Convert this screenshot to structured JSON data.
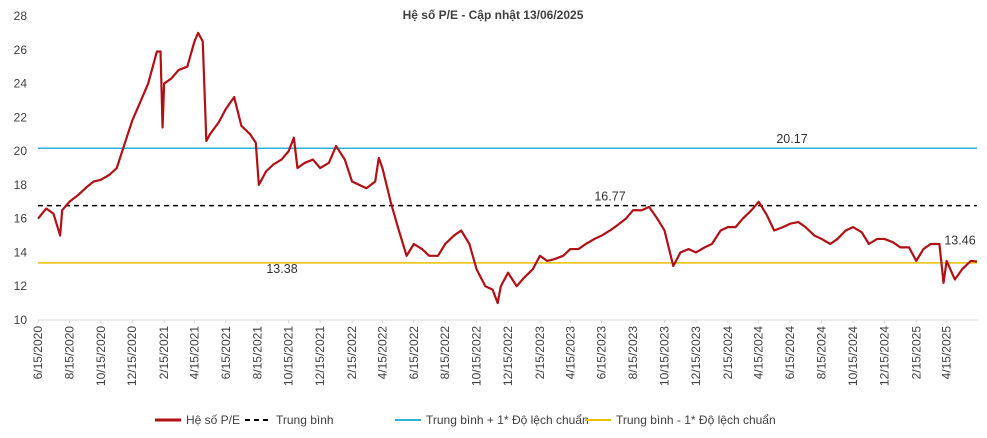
{
  "chart_data": {
    "type": "line",
    "title": "Hệ số P/E - Cập nhật 13/06/2025",
    "x": [
      "6/15/2020",
      "7/1/2020",
      "7/15/2020",
      "7/28/2020",
      "8/1/2020",
      "8/15/2020",
      "9/1/2020",
      "9/15/2020",
      "10/1/2020",
      "10/15/2020",
      "11/1/2020",
      "11/15/2020",
      "12/1/2020",
      "12/15/2020",
      "1/1/2021",
      "1/15/2021",
      "2/1/2021",
      "2/8/2021",
      "2/12/2021",
      "2/15/2021",
      "3/1/2021",
      "3/15/2021",
      "4/1/2021",
      "4/15/2021",
      "4/22/2021",
      "5/1/2021",
      "5/8/2021",
      "5/15/2021",
      "6/1/2021",
      "6/15/2021",
      "7/1/2021",
      "7/15/2021",
      "8/1/2021",
      "8/12/2021",
      "8/18/2021",
      "9/1/2021",
      "9/15/2021",
      "10/1/2021",
      "10/15/2021",
      "10/25/2021",
      "11/1/2021",
      "11/15/2021",
      "12/1/2021",
      "12/15/2021",
      "1/1/2022",
      "1/15/2022",
      "2/1/2022",
      "2/15/2022",
      "3/1/2022",
      "3/15/2022",
      "4/1/2022",
      "4/8/2022",
      "4/15/2022",
      "5/1/2022",
      "5/15/2022",
      "6/1/2022",
      "6/15/2022",
      "7/1/2022",
      "7/15/2022",
      "8/1/2022",
      "8/15/2022",
      "9/1/2022",
      "9/15/2022",
      "10/1/2022",
      "10/15/2022",
      "11/1/2022",
      "11/15/2022",
      "11/25/2022",
      "12/1/2022",
      "12/15/2022",
      "1/1/2023",
      "1/15/2023",
      "2/1/2023",
      "2/15/2023",
      "3/1/2023",
      "3/15/2023",
      "4/1/2023",
      "4/15/2023",
      "5/1/2023",
      "5/15/2023",
      "6/1/2023",
      "6/15/2023",
      "7/1/2023",
      "7/15/2023",
      "8/1/2023",
      "8/15/2023",
      "9/1/2023",
      "9/15/2023",
      "10/1/2023",
      "10/15/2023",
      "11/1/2023",
      "11/15/2023",
      "12/1/2023",
      "12/15/2023",
      "1/1/2024",
      "1/15/2024",
      "2/1/2024",
      "2/15/2024",
      "3/1/2024",
      "3/15/2024",
      "4/1/2024",
      "4/15/2024",
      "5/1/2024",
      "5/15/2024",
      "6/1/2024",
      "6/15/2024",
      "7/1/2024",
      "7/15/2024",
      "8/1/2024",
      "8/15/2024",
      "9/1/2024",
      "9/15/2024",
      "10/1/2024",
      "10/15/2024",
      "11/1/2024",
      "11/15/2024",
      "12/1/2024",
      "12/15/2024",
      "1/1/2025",
      "1/15/2025",
      "2/1/2025",
      "2/15/2025",
      "3/1/2025",
      "3/15/2025",
      "4/1/2025",
      "4/9/2025",
      "4/15/2025",
      "5/1/2025",
      "5/15/2025",
      "6/1/2025",
      "6/13/2025"
    ],
    "series": [
      {
        "name": "Hệ số P/E",
        "color": "#b01116",
        "values": [
          16.0,
          16.6,
          16.3,
          15.0,
          16.5,
          17.0,
          17.4,
          17.8,
          18.2,
          18.3,
          18.6,
          19.0,
          20.5,
          21.8,
          23.0,
          24.0,
          25.9,
          25.9,
          21.4,
          24.0,
          24.3,
          24.8,
          25.0,
          26.5,
          27.0,
          26.5,
          20.6,
          21.0,
          21.7,
          22.5,
          23.2,
          21.5,
          21.0,
          20.5,
          18.0,
          18.8,
          19.2,
          19.5,
          20.0,
          20.8,
          19.0,
          19.3,
          19.5,
          19.0,
          19.3,
          20.3,
          19.5,
          18.2,
          18.0,
          17.8,
          18.2,
          19.6,
          19.0,
          17.0,
          15.5,
          13.8,
          14.5,
          14.2,
          13.8,
          13.8,
          14.5,
          15.0,
          15.3,
          14.5,
          13.0,
          12.0,
          11.8,
          11.0,
          12.0,
          12.8,
          12.0,
          12.5,
          13.0,
          13.8,
          13.5,
          13.6,
          13.8,
          14.2,
          14.2,
          14.5,
          14.8,
          15.0,
          15.3,
          15.6,
          16.0,
          16.5,
          16.5,
          16.7,
          16.0,
          15.3,
          13.2,
          14.0,
          14.2,
          14.0,
          14.3,
          14.5,
          15.3,
          15.5,
          15.5,
          16.0,
          16.5,
          17.0,
          16.2,
          15.3,
          15.5,
          15.7,
          15.8,
          15.5,
          15.0,
          14.8,
          14.5,
          14.8,
          15.3,
          15.5,
          15.2,
          14.5,
          14.8,
          14.8,
          14.6,
          14.3,
          14.3,
          13.5,
          14.2,
          14.5,
          14.5,
          12.2,
          13.5,
          12.4,
          13.0,
          13.5,
          13.46
        ]
      },
      {
        "name": "Trung bình",
        "color": "#000000",
        "dash": "5 4",
        "value": 16.77
      },
      {
        "name": "Trung bình + 1* Độ lệch chuẩn",
        "color": "#2eb1d6",
        "value": 20.17
      },
      {
        "name": "Trung bình - 1* Độ lệch chuẩn",
        "color": "#e8c000",
        "value": 13.38
      }
    ],
    "xlim": [
      "6/15/2020",
      "6/13/2025"
    ],
    "xticks": [
      "6/15/2020",
      "8/15/2020",
      "10/15/2020",
      "12/15/2020",
      "2/15/2021",
      "4/15/2021",
      "6/15/2021",
      "8/15/2021",
      "10/15/2021",
      "12/15/2021",
      "2/15/2022",
      "4/15/2022",
      "6/15/2022",
      "8/15/2022",
      "10/15/2022",
      "12/15/2022",
      "2/15/2023",
      "4/15/2023",
      "6/15/2023",
      "8/15/2023",
      "10/15/2023",
      "12/15/2023",
      "2/15/2024",
      "4/15/2024",
      "6/15/2024",
      "8/15/2024",
      "10/15/2024",
      "12/15/2024",
      "2/15/2025",
      "4/15/2025"
    ],
    "ylim": [
      10,
      28
    ],
    "yticks": [
      10,
      12,
      14,
      16,
      18,
      20,
      22,
      24,
      26,
      28
    ]
  }
}
